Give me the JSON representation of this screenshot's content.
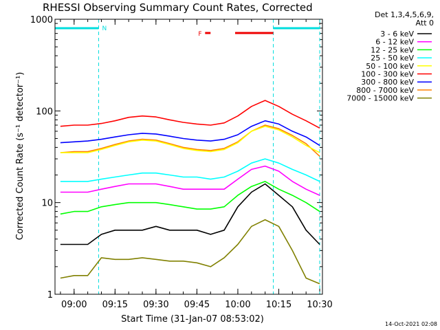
{
  "chart_data": {
    "type": "line",
    "title": "RHESSI Observing Summary Count Rates, Corrected",
    "xlabel": "Start Time (31-Jan-07 08:53:02)",
    "ylabel": "Corrected Count Rate (s⁻¹ detector⁻¹)",
    "yscale": "log",
    "ylim": [
      1,
      1000
    ],
    "xlim": [
      "08:53",
      "10:31"
    ],
    "x_ticks": [
      "09:00",
      "09:15",
      "09:30",
      "09:45",
      "10:00",
      "10:15",
      "10:30"
    ],
    "y_ticks": [
      "1",
      "10",
      "100",
      "1000"
    ],
    "legend_header": [
      "Det 1,3,4,5,6,9,",
      "Att 0"
    ],
    "legend_position": "right",
    "timestamp": "14-Oct-2021 02:08",
    "annotations": {
      "night_marker": "N",
      "flare_marker": "F",
      "night_intervals": [
        [
          "08:53",
          "09:09"
        ],
        [
          "10:13",
          "10:30"
        ]
      ],
      "flare_intervals": [
        [
          "09:48",
          "09:50"
        ],
        [
          "09:59",
          "10:13"
        ]
      ],
      "night_boundaries": [
        "08:53",
        "09:09",
        "10:13",
        "10:30"
      ]
    },
    "x": [
      "08:55",
      "09:00",
      "09:05",
      "09:10",
      "09:15",
      "09:20",
      "09:25",
      "09:30",
      "09:35",
      "09:40",
      "09:45",
      "09:50",
      "09:55",
      "10:00",
      "10:05",
      "10:10",
      "10:15",
      "10:20",
      "10:25",
      "10:30"
    ],
    "series": [
      {
        "name": "3 - 6 keV",
        "color": "#000000",
        "values": [
          3.5,
          3.5,
          3.5,
          4.5,
          5,
          5,
          5,
          5.5,
          5,
          5,
          5,
          4.5,
          5,
          9,
          13,
          16,
          12,
          9,
          5,
          3.5
        ]
      },
      {
        "name": "6 - 12 keV",
        "color": "#ff00ff",
        "values": [
          13,
          13,
          13,
          14,
          15,
          16,
          16,
          16,
          15,
          14,
          14,
          14,
          14,
          18,
          23,
          25,
          22,
          17,
          14,
          12
        ]
      },
      {
        "name": "12 - 25 keV",
        "color": "#00ff00",
        "values": [
          7.5,
          8,
          8,
          9,
          9.5,
          10,
          10,
          10,
          9.5,
          9,
          8.5,
          8.5,
          9,
          12,
          15,
          17,
          14,
          12,
          10,
          8
        ]
      },
      {
        "name": "25 - 50 keV",
        "color": "#00ffff",
        "values": [
          17,
          17,
          17,
          18,
          19,
          20,
          21,
          21,
          20,
          19,
          19,
          18,
          19,
          22,
          27,
          30,
          27,
          23,
          20,
          17
        ]
      },
      {
        "name": "50 - 100 keV",
        "color": "#ffff00",
        "values": [
          35,
          35,
          35,
          38,
          42,
          46,
          48,
          47,
          43,
          39,
          37,
          36,
          38,
          45,
          60,
          68,
          62,
          52,
          42,
          35
        ]
      },
      {
        "name": "100 - 300 keV",
        "color": "#ff0000",
        "values": [
          68,
          70,
          70,
          73,
          78,
          85,
          88,
          86,
          80,
          75,
          72,
          70,
          74,
          88,
          112,
          130,
          112,
          92,
          78,
          65
        ]
      },
      {
        "name": "300 - 800 keV",
        "color": "#0000ff",
        "values": [
          45,
          46,
          47,
          49,
          52,
          55,
          57,
          56,
          53,
          50,
          48,
          47,
          49,
          55,
          68,
          78,
          72,
          60,
          52,
          42
        ]
      },
      {
        "name": "800 - 7000 keV",
        "color": "#ff8000",
        "values": [
          35,
          36,
          36,
          39,
          43,
          47,
          49,
          48,
          44,
          40,
          38,
          37,
          39,
          46,
          60,
          70,
          64,
          54,
          44,
          32
        ]
      },
      {
        "name": "7000 - 15000 keV",
        "color": "#808000",
        "values": [
          1.5,
          1.6,
          1.6,
          2.5,
          2.4,
          2.4,
          2.5,
          2.4,
          2.3,
          2.3,
          2.2,
          2.0,
          2.5,
          3.5,
          5.5,
          6.5,
          5.5,
          3.0,
          1.5,
          1.3
        ]
      }
    ]
  }
}
